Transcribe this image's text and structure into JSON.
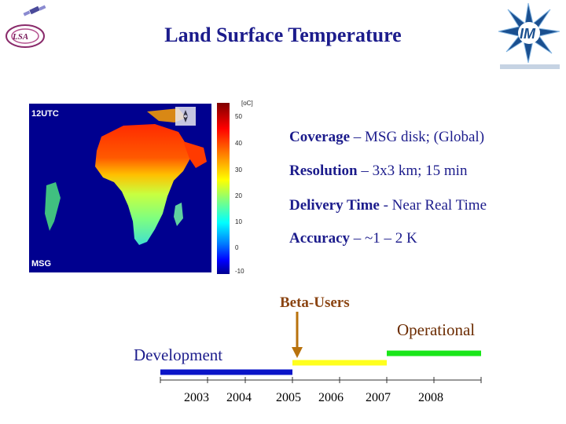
{
  "title": "Land Surface Temperature",
  "map": {
    "time_label": "12UTC",
    "source_label": "MSG",
    "unit_label": "[oC]",
    "colorbar_ticks": [
      "50",
      "40",
      "30",
      "20",
      "10",
      "0",
      "-10"
    ]
  },
  "bullets": [
    {
      "key": "Coverage",
      "text": " – MSG disk; (Global)"
    },
    {
      "key": "Resolution",
      "text": " – 3x3 km; 15 min"
    },
    {
      "key": "Delivery Time",
      "text": " - Near Real Time"
    },
    {
      "key": "Accuracy",
      "text": " – ~1 – 2 K"
    }
  ],
  "timeline": {
    "beta_label": "Beta-Users",
    "operational_label": "Operational",
    "development_label": "Development",
    "years": [
      "2003",
      "2004",
      "2005",
      "2006",
      "2007",
      "2008"
    ],
    "phase_colors": {
      "development": "#0a14c8",
      "beta": "#ffff1e",
      "operational": "#19e619",
      "arrow": "#b8720c"
    }
  }
}
